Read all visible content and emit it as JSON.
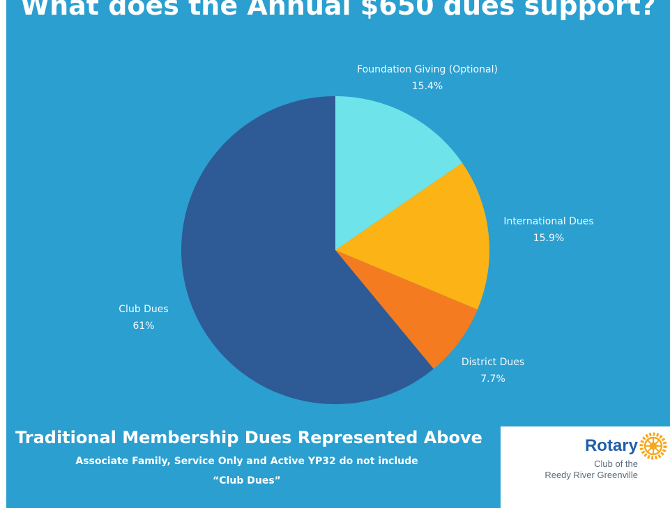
{
  "title": "What does the Annual $650 dues support?",
  "colors": {
    "background": "#2b9fcf",
    "foundation": "#6ee4ea",
    "international": "#fcb316",
    "district": "#f47b20",
    "club": "#2e5a96"
  },
  "chart_data": {
    "type": "pie",
    "title": "What does the Annual $650 dues support?",
    "slices": [
      {
        "label": "Foundation Giving (Optional)",
        "value": 15.4,
        "value_label": "15.4%",
        "color": "#6ee4ea"
      },
      {
        "label": "International Dues",
        "value": 15.9,
        "value_label": "15.9%",
        "color": "#fcb316"
      },
      {
        "label": "District Dues",
        "value": 7.7,
        "value_label": "7.7%",
        "color": "#f47b20"
      },
      {
        "label": "Club Dues",
        "value": 61,
        "value_label": "61%",
        "color": "#2e5a96"
      }
    ]
  },
  "footer": {
    "heading": "Traditional Membership Dues Represented Above",
    "note_line1": "Associate Family, Service Only and Active YP32 do not include",
    "note_line2": "“Club Dues”"
  },
  "logo": {
    "name": "Rotary",
    "line2": "Club of the",
    "line3": "Reedy River Greenville",
    "wheel_icon": "rotary-wheel-icon",
    "wheel_color": "#f7a81b",
    "text_color": "#1f5ea8"
  }
}
